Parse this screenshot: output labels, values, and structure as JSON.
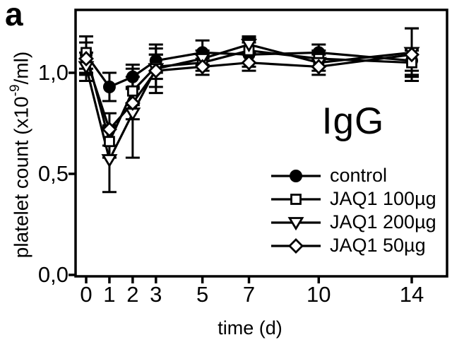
{
  "figure": {
    "panel_label": "a",
    "background_color": "#ffffff",
    "ink_color": "#000000"
  },
  "chart_data": {
    "type": "line",
    "title": "",
    "annotation": "IgG",
    "xlabel": "time (d)",
    "ylabel": "platelet count (x10-9/ml)",
    "ylabel_parts": {
      "prefix": "platelet count (x10",
      "superscript": "-9",
      "suffix": "/ml)"
    },
    "x": [
      0,
      1,
      2,
      3,
      5,
      7,
      10,
      14
    ],
    "x_tick_labels": [
      "0",
      "1",
      "2",
      "3",
      "5",
      "7",
      "10",
      "14"
    ],
    "xlim": [
      -0.5,
      15.5
    ],
    "y_ticks": [
      0.0,
      0.5,
      1.0
    ],
    "y_tick_labels": [
      "0,0",
      "0,5",
      "1,0"
    ],
    "ylim": [
      0,
      1.31
    ],
    "grid": false,
    "legend_position": "inside lower right",
    "series": [
      {
        "name": "control",
        "marker": "circle-filled",
        "values": [
          1.09,
          0.93,
          0.98,
          1.06,
          1.1,
          1.09,
          1.1,
          1.06
        ],
        "errors": [
          0.09,
          0.07,
          0.06,
          0.06,
          0.06,
          0.06,
          0.04,
          0.05
        ]
      },
      {
        "name": "JAQ1 100µg",
        "marker": "square-open",
        "values": [
          1.1,
          0.66,
          0.91,
          1.03,
          1.05,
          1.11,
          1.07,
          1.05
        ],
        "errors": [
          0.08,
          0.08,
          0.07,
          0.06,
          0.04,
          0.06,
          0.04,
          0.06
        ]
      },
      {
        "name": "JAQ1 200µg",
        "marker": "triangle-down-open",
        "values": [
          1.03,
          0.57,
          0.8,
          1.02,
          1.07,
          1.14,
          1.05,
          1.1
        ],
        "errors": [
          0.07,
          0.16,
          0.22,
          0.12,
          0.04,
          0.04,
          0.04,
          0.12
        ]
      },
      {
        "name": "JAQ1 50µg",
        "marker": "diamond-open",
        "values": [
          1.07,
          0.72,
          0.85,
          1.01,
          1.03,
          1.05,
          1.03,
          1.09
        ],
        "errors": [
          0.08,
          0.08,
          0.08,
          0.08,
          0.04,
          0.04,
          0.04,
          0.13
        ]
      }
    ]
  }
}
